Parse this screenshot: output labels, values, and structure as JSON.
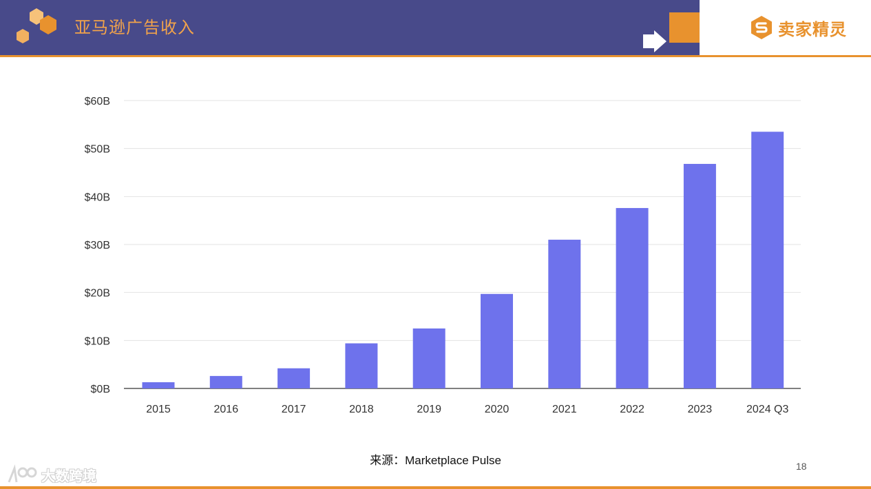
{
  "slide": {
    "title": "亚马逊广告收入",
    "brand": "卖家精灵",
    "source": "来源：Marketplace Pulse",
    "page_number": "18",
    "watermark": "大数跨境"
  },
  "colors": {
    "header_bg": "#484a8a",
    "accent": "#e8922e",
    "bar": "#6e72ec"
  },
  "icons": [
    "hexagon-cluster-logo",
    "arrow-right-icon",
    "brand-s-logo",
    "watermark-logo"
  ],
  "chart_data": {
    "type": "bar",
    "categories": [
      "2015",
      "2016",
      "2017",
      "2018",
      "2019",
      "2020",
      "2021",
      "2022",
      "2023",
      "2024 Q3"
    ],
    "values": [
      1.3,
      2.6,
      4.2,
      9.4,
      12.5,
      19.7,
      31.0,
      37.6,
      46.8,
      53.5
    ],
    "ylim": [
      0,
      60
    ],
    "yticks": [
      0,
      10,
      20,
      30,
      40,
      50,
      60
    ],
    "ytick_labels": [
      "$0B",
      "$10B",
      "$20B",
      "$30B",
      "$40B",
      "$50B",
      "$60B"
    ],
    "grid": true,
    "legend": "none"
  }
}
